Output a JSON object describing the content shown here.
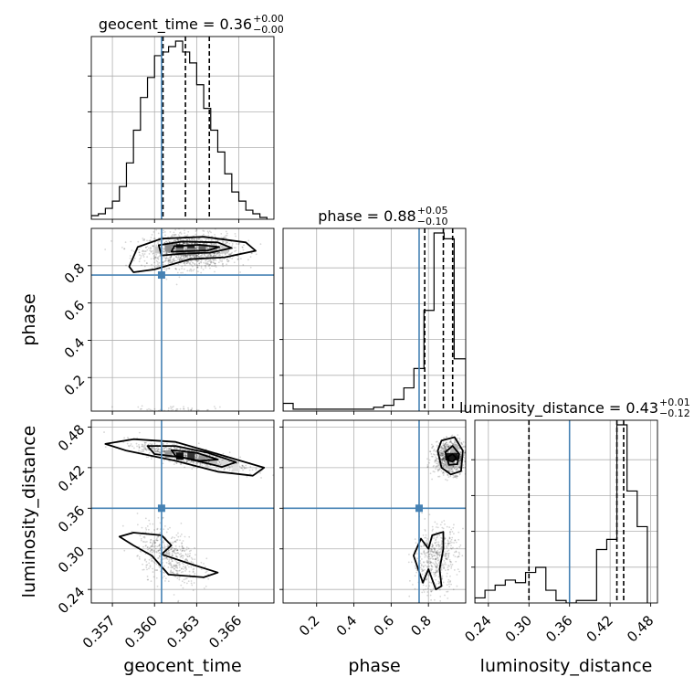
{
  "chart_data": {
    "type": "corner",
    "parameters": [
      "geocent_time",
      "phase",
      "luminosity_distance"
    ],
    "axis_labels": [
      "geocent_time",
      "phase",
      "luminosity_distance"
    ],
    "truth": {
      "geocent_time": 0.3605,
      "phase": 0.75,
      "luminosity_distance": 0.36
    },
    "truth_color": "#4682b4",
    "titles": [
      {
        "param": "geocent_time",
        "text": "geocent_time = 0.36",
        "sup": "+0.00",
        "sub": "−0.00"
      },
      {
        "param": "phase",
        "text": "phase = 0.88",
        "sup": "+0.05",
        "sub": "−0.10"
      },
      {
        "param": "luminosity_distance",
        "text": "luminosity_distance = 0.43",
        "sup": "+0.01",
        "sub": "−0.12"
      }
    ],
    "ranges": {
      "geocent_time": [
        0.3555,
        0.3685
      ],
      "phase": [
        0.02,
        1.0
      ],
      "luminosity_distance": [
        0.22,
        0.49
      ]
    },
    "ticks": {
      "geocent_time": [
        0.357,
        0.36,
        0.363,
        0.366
      ],
      "phase": [
        0.2,
        0.4,
        0.6,
        0.8
      ],
      "luminosity_distance": [
        0.24,
        0.3,
        0.36,
        0.42,
        0.48
      ]
    },
    "tick_labels": {
      "geocent_time": [
        "0.357",
        "0.360",
        "0.363",
        "0.366"
      ],
      "phase": [
        "0.2",
        "0.4",
        "0.6",
        "0.8"
      ],
      "luminosity_distance": [
        "0.24",
        "0.30",
        "0.36",
        "0.42",
        "0.48"
      ]
    },
    "quantiles": {
      "geocent_time": [
        0.3606,
        0.3622,
        0.3639
      ],
      "phase": [
        0.78,
        0.88,
        0.93
      ],
      "luminosity_distance": [
        0.3,
        0.43,
        0.44
      ]
    },
    "histograms": {
      "geocent_time": {
        "edges": [
          0.3555,
          0.356,
          0.3565,
          0.357,
          0.3575,
          0.358,
          0.3585,
          0.359,
          0.3595,
          0.36,
          0.3605,
          0.361,
          0.3615,
          0.362,
          0.3625,
          0.363,
          0.3635,
          0.364,
          0.3645,
          0.365,
          0.3655,
          0.366,
          0.3665,
          0.367,
          0.3675,
          0.368
        ],
        "counts": [
          2,
          3,
          6,
          10,
          18,
          31,
          49,
          67,
          78,
          90,
          92,
          95,
          98,
          92,
          86,
          74,
          61,
          49,
          37,
          25,
          15,
          10,
          5,
          3,
          1
        ]
      },
      "phase": {
        "edges": [
          0.02,
          0.074,
          0.128,
          0.182,
          0.236,
          0.29,
          0.344,
          0.398,
          0.452,
          0.506,
          0.56,
          0.614,
          0.668,
          0.722,
          0.776,
          0.83,
          0.884,
          0.938,
          1.0
        ],
        "counts": [
          4,
          1,
          1,
          1,
          1,
          1,
          1,
          1,
          1,
          2,
          3,
          6,
          12,
          22,
          52,
          92,
          89,
          27
        ]
      },
      "luminosity_distance": {
        "edges": [
          0.22,
          0.235,
          0.25,
          0.265,
          0.28,
          0.295,
          0.31,
          0.325,
          0.34,
          0.355,
          0.37,
          0.385,
          0.4,
          0.415,
          0.43,
          0.445,
          0.46,
          0.475
        ],
        "counts": [
          2,
          5,
          7,
          9,
          8,
          12,
          14,
          5,
          1,
          0,
          1,
          1,
          21,
          25,
          70,
          44,
          30
        ]
      }
    },
    "grid": true
  }
}
